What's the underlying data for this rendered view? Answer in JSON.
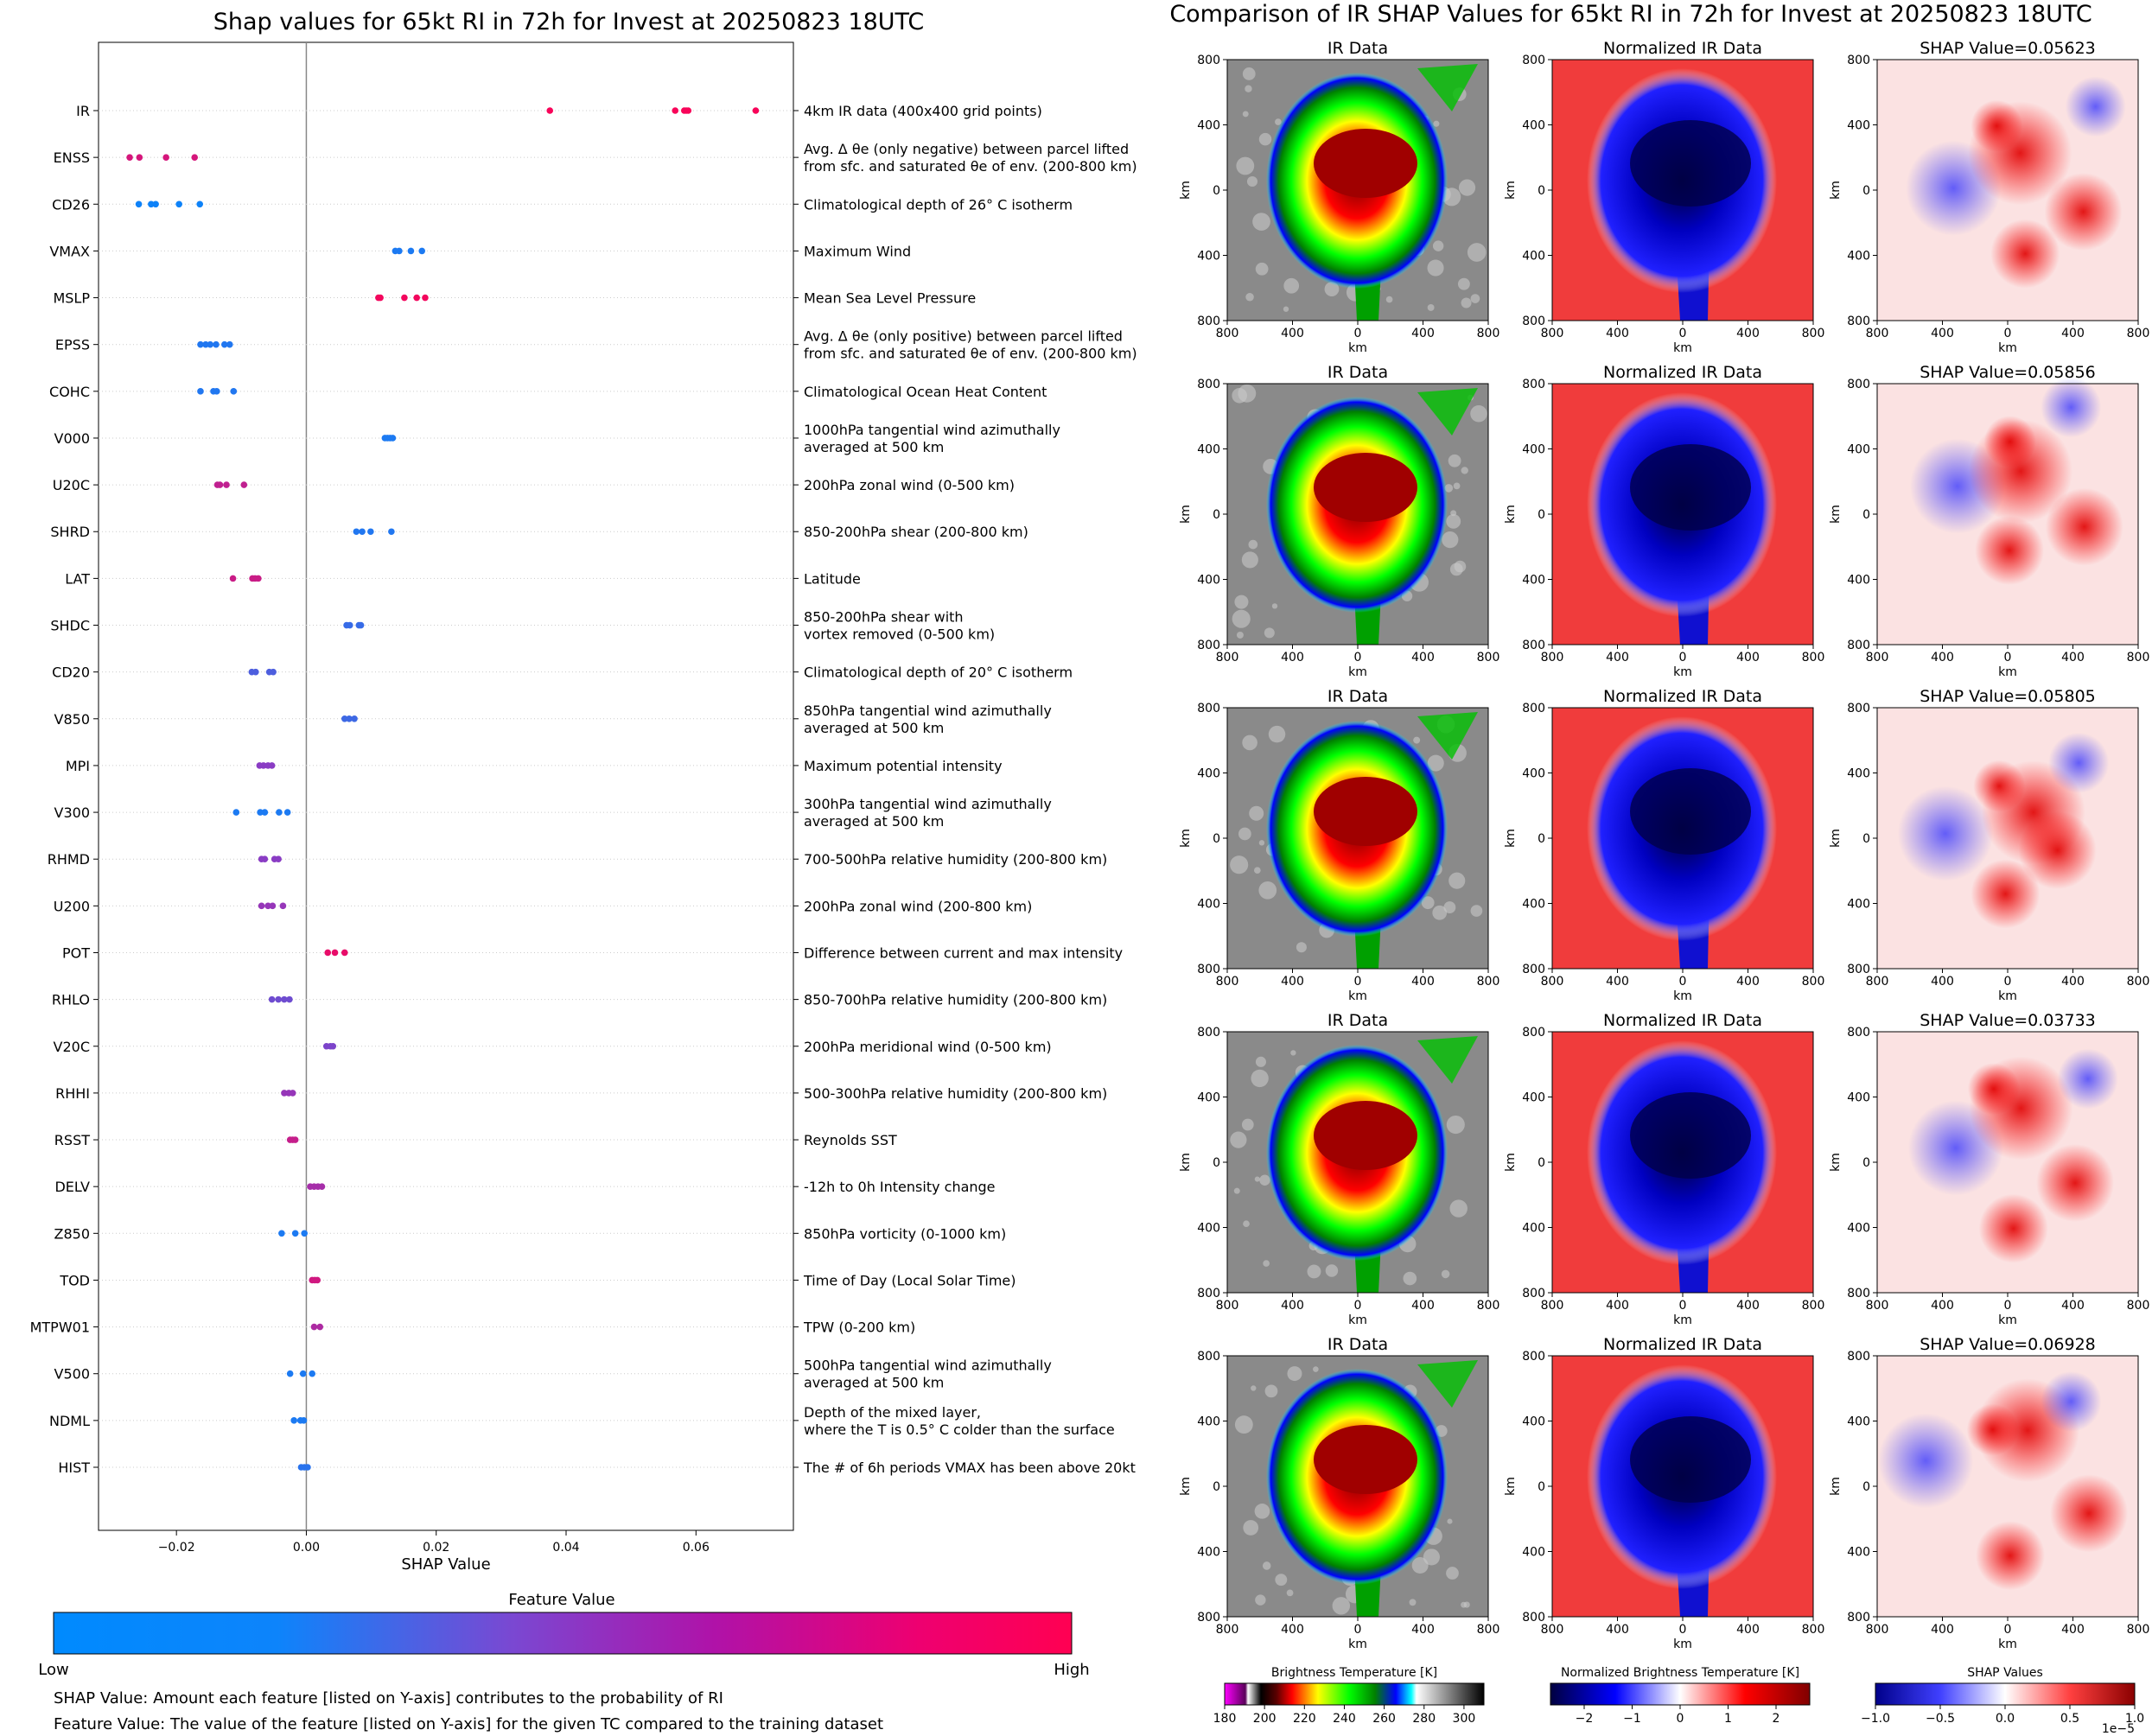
{
  "left_chart": {
    "title": "Shap values for 65kt RI in 72h for Invest at 20250823 18UTC",
    "xlabel": "SHAP Value",
    "xticks": [
      "-0.02",
      "0.00",
      "0.02",
      "0.04",
      "0.06"
    ],
    "colorbar_title": "Feature Value",
    "colorbar_low": "Low",
    "colorbar_high": "High",
    "note1": "SHAP Value: Amount each feature [listed on Y-axis] contributes to the probability of RI",
    "note2": "Feature Value: The value of the feature [listed on Y-axis] for the given TC compared to the training dataset"
  },
  "right_chart": {
    "title": "Comparison of IR SHAP Values for 65kt RI in 72h for Invest at 20250823 18UTC",
    "col_titles": [
      "IR Data",
      "Normalized IR Data"
    ],
    "shap_titles": [
      "SHAP Value=0.05623",
      "SHAP Value=0.05856",
      "SHAP Value=0.05805",
      "SHAP Value=0.03733",
      "SHAP Value=0.06928"
    ],
    "axis_label": "km",
    "axis_ticks": [
      "800",
      "400",
      "0",
      "400",
      "800"
    ],
    "cb1_label": "Brightness Temperature [K]",
    "cb1_ticks": [
      "180",
      "200",
      "220",
      "240",
      "260",
      "280",
      "300"
    ],
    "cb2_label": "Normalized Brightness Temperature [K]",
    "cb2_ticks": [
      "−2",
      "−1",
      "0",
      "1",
      "2"
    ],
    "cb3_label": "SHAP Values",
    "cb3_ticks": [
      "−1.0",
      "−0.5",
      "0.0",
      "0.5",
      "1.0"
    ],
    "cb3_scale": "1e−5"
  },
  "chart_data": [
    {
      "type": "scatter",
      "title": "Shap values for 65kt RI in 72h for Invest at 20250823 18UTC",
      "xlabel": "SHAP Value",
      "xlim": [
        -0.032,
        0.075
      ],
      "color_scale": [
        "#008afe",
        "#8a3cc4",
        "#ff0052"
      ],
      "features": [
        {
          "name": "IR",
          "desc": [
            "4km IR data (400x400 grid points)"
          ],
          "values": [
            0.0375,
            0.0568,
            0.0582,
            0.0585,
            0.0588,
            0.0692
          ],
          "fv": 0.97
        },
        {
          "name": "ENSS",
          "desc": [
            "Avg. Δ θe (only negative) between parcel lifted",
            "from sfc. and saturated θe of env. (200-800 km)"
          ],
          "values": [
            -0.0272,
            -0.0257,
            -0.0216,
            -0.0172
          ],
          "fv": 0.82
        },
        {
          "name": "CD26",
          "desc": [
            "Climatological depth of 26° C isotherm"
          ],
          "values": [
            -0.0258,
            -0.0239,
            -0.0232,
            -0.0196,
            -0.0164
          ],
          "fv": 0.05
        },
        {
          "name": "VMAX",
          "desc": [
            "Maximum Wind"
          ],
          "values": [
            0.0137,
            0.0143,
            0.0161,
            0.0178
          ],
          "fv": 0.1
        },
        {
          "name": "MSLP",
          "desc": [
            "Mean Sea Level Pressure"
          ],
          "values": [
            0.0111,
            0.0114,
            0.0151,
            0.017,
            0.0183
          ],
          "fv": 0.95
        },
        {
          "name": "EPSS",
          "desc": [
            "Avg. Δ θe (only positive) between parcel lifted",
            "from sfc. and saturated θe of env. (200-800 km)"
          ],
          "values": [
            -0.0163,
            -0.0155,
            -0.0148,
            -0.0139,
            -0.0126,
            -0.0118
          ],
          "fv": 0.12
        },
        {
          "name": "COHC",
          "desc": [
            "Climatological Ocean Heat Content"
          ],
          "values": [
            -0.0163,
            -0.0143,
            -0.0138,
            -0.0112
          ],
          "fv": 0.12
        },
        {
          "name": "V000",
          "desc": [
            "1000hPa tangential wind azimuthally",
            "averaged at 500 km"
          ],
          "values": [
            0.0121,
            0.0125,
            0.0129,
            0.0133
          ],
          "fv": 0.1
        },
        {
          "name": "U20C",
          "desc": [
            "200hPa zonal wind (0-500 km)"
          ],
          "values": [
            -0.0137,
            -0.0133,
            -0.0123,
            -0.0096
          ],
          "fv": 0.73
        },
        {
          "name": "SHRD",
          "desc": [
            "850-200hPa shear (200-800 km)"
          ],
          "values": [
            0.0077,
            0.0086,
            0.0099,
            0.0131
          ],
          "fv": 0.12
        },
        {
          "name": "LAT",
          "desc": [
            "Latitude"
          ],
          "values": [
            -0.0113,
            -0.0083,
            -0.0079,
            -0.0074
          ],
          "fv": 0.77
        },
        {
          "name": "SHDC",
          "desc": [
            "850-200hPa shear with",
            "vortex removed (0-500 km)"
          ],
          "values": [
            0.0062,
            0.0067,
            0.0081,
            0.0084
          ],
          "fv": 0.2
        },
        {
          "name": "CD20",
          "desc": [
            "Climatological depth of 20° C isotherm"
          ],
          "values": [
            -0.0084,
            -0.0078,
            -0.0057,
            -0.0051
          ],
          "fv": 0.28
        },
        {
          "name": "V850",
          "desc": [
            "850hPa tangential wind azimuthally",
            "averaged at 500 km"
          ],
          "values": [
            0.0059,
            0.0066,
            0.0074
          ],
          "fv": 0.22
        },
        {
          "name": "MPI",
          "desc": [
            "Maximum potential intensity"
          ],
          "values": [
            -0.0072,
            -0.0066,
            -0.0059,
            -0.0053
          ],
          "fv": 0.5
        },
        {
          "name": "V300",
          "desc": [
            "300hPa tangential wind azimuthally",
            "averaged at 500 km"
          ],
          "values": [
            -0.0108,
            -0.0071,
            -0.0064,
            -0.0042,
            -0.0029
          ],
          "fv": 0.1
        },
        {
          "name": "RHMD",
          "desc": [
            "700-500hPa relative humidity (200-800 km)"
          ],
          "values": [
            -0.0069,
            -0.0064,
            -0.0049,
            -0.0043
          ],
          "fv": 0.5
        },
        {
          "name": "U200",
          "desc": [
            "200hPa zonal wind (200-800 km)"
          ],
          "values": [
            -0.0069,
            -0.0059,
            -0.0052,
            -0.0036
          ],
          "fv": 0.55
        },
        {
          "name": "POT",
          "desc": [
            "Difference between current and max intensity"
          ],
          "values": [
            0.0033,
            0.0044,
            0.0059
          ],
          "fv": 0.9
        },
        {
          "name": "RHLO",
          "desc": [
            "850-700hPa relative humidity (200-800 km)"
          ],
          "values": [
            -0.0053,
            -0.0043,
            -0.0034,
            -0.0026
          ],
          "fv": 0.4
        },
        {
          "name": "V20C",
          "desc": [
            "200hPa meridional wind (0-500 km)"
          ],
          "values": [
            0.0031,
            0.0037,
            0.0041
          ],
          "fv": 0.45
        },
        {
          "name": "RHHI",
          "desc": [
            "500-300hPa relative humidity (200-800 km)"
          ],
          "values": [
            -0.0034,
            -0.0027,
            -0.0021
          ],
          "fv": 0.55
        },
        {
          "name": "RSST",
          "desc": [
            "Reynolds SST"
          ],
          "values": [
            -0.0025,
            -0.0021,
            -0.0017
          ],
          "fv": 0.75
        },
        {
          "name": "DELV",
          "desc": [
            "-12h to 0h Intensity change"
          ],
          "values": [
            0.0006,
            0.0012,
            0.0018,
            0.0024
          ],
          "fv": 0.62
        },
        {
          "name": "Z850",
          "desc": [
            "850hPa vorticity (0-1000 km)"
          ],
          "values": [
            -0.0038,
            -0.0017,
            -0.0003
          ],
          "fv": 0.1
        },
        {
          "name": "TOD",
          "desc": [
            "Time of Day (Local Solar Time)"
          ],
          "values": [
            0.0009,
            0.0013,
            0.0017
          ],
          "fv": 0.8
        },
        {
          "name": "MTPW01",
          "desc": [
            "TPW (0-200 km)"
          ],
          "values": [
            0.0012,
            0.0021
          ],
          "fv": 0.65
        },
        {
          "name": "V500",
          "desc": [
            "500hPa tangential wind azimuthally",
            "averaged at 500 km"
          ],
          "values": [
            -0.0025,
            -0.0005,
            0.0009
          ],
          "fv": 0.1
        },
        {
          "name": "NDML",
          "desc": [
            "Depth of the mixed layer,",
            "where the T is 0.5° C colder than the surface"
          ],
          "values": [
            -0.0019,
            -0.0009,
            -0.0004
          ],
          "fv": 0.1
        },
        {
          "name": "HIST",
          "desc": [
            "The # of 6h periods VMAX has been above 20kt"
          ],
          "values": [
            -0.0008,
            -0.0003,
            0.0002
          ],
          "fv": 0.15
        }
      ]
    },
    {
      "type": "heatmap",
      "title": "Comparison of IR SHAP Values for 65kt RI in 72h for Invest at 20250823 18UTC",
      "rows": 5,
      "columns": [
        "IR Data",
        "Normalized IR Data",
        "SHAP"
      ],
      "shap_values": [
        0.05623,
        0.05856,
        0.05805,
        0.03733,
        0.06928
      ],
      "xlim": [
        -800,
        800
      ],
      "ylim": [
        -800,
        800
      ],
      "ir_colorbar_range": [
        180,
        310
      ],
      "norm_colorbar_range": [
        -2.7,
        2.7
      ],
      "shap_colorbar_range": [
        -1.0,
        1.0
      ]
    }
  ]
}
